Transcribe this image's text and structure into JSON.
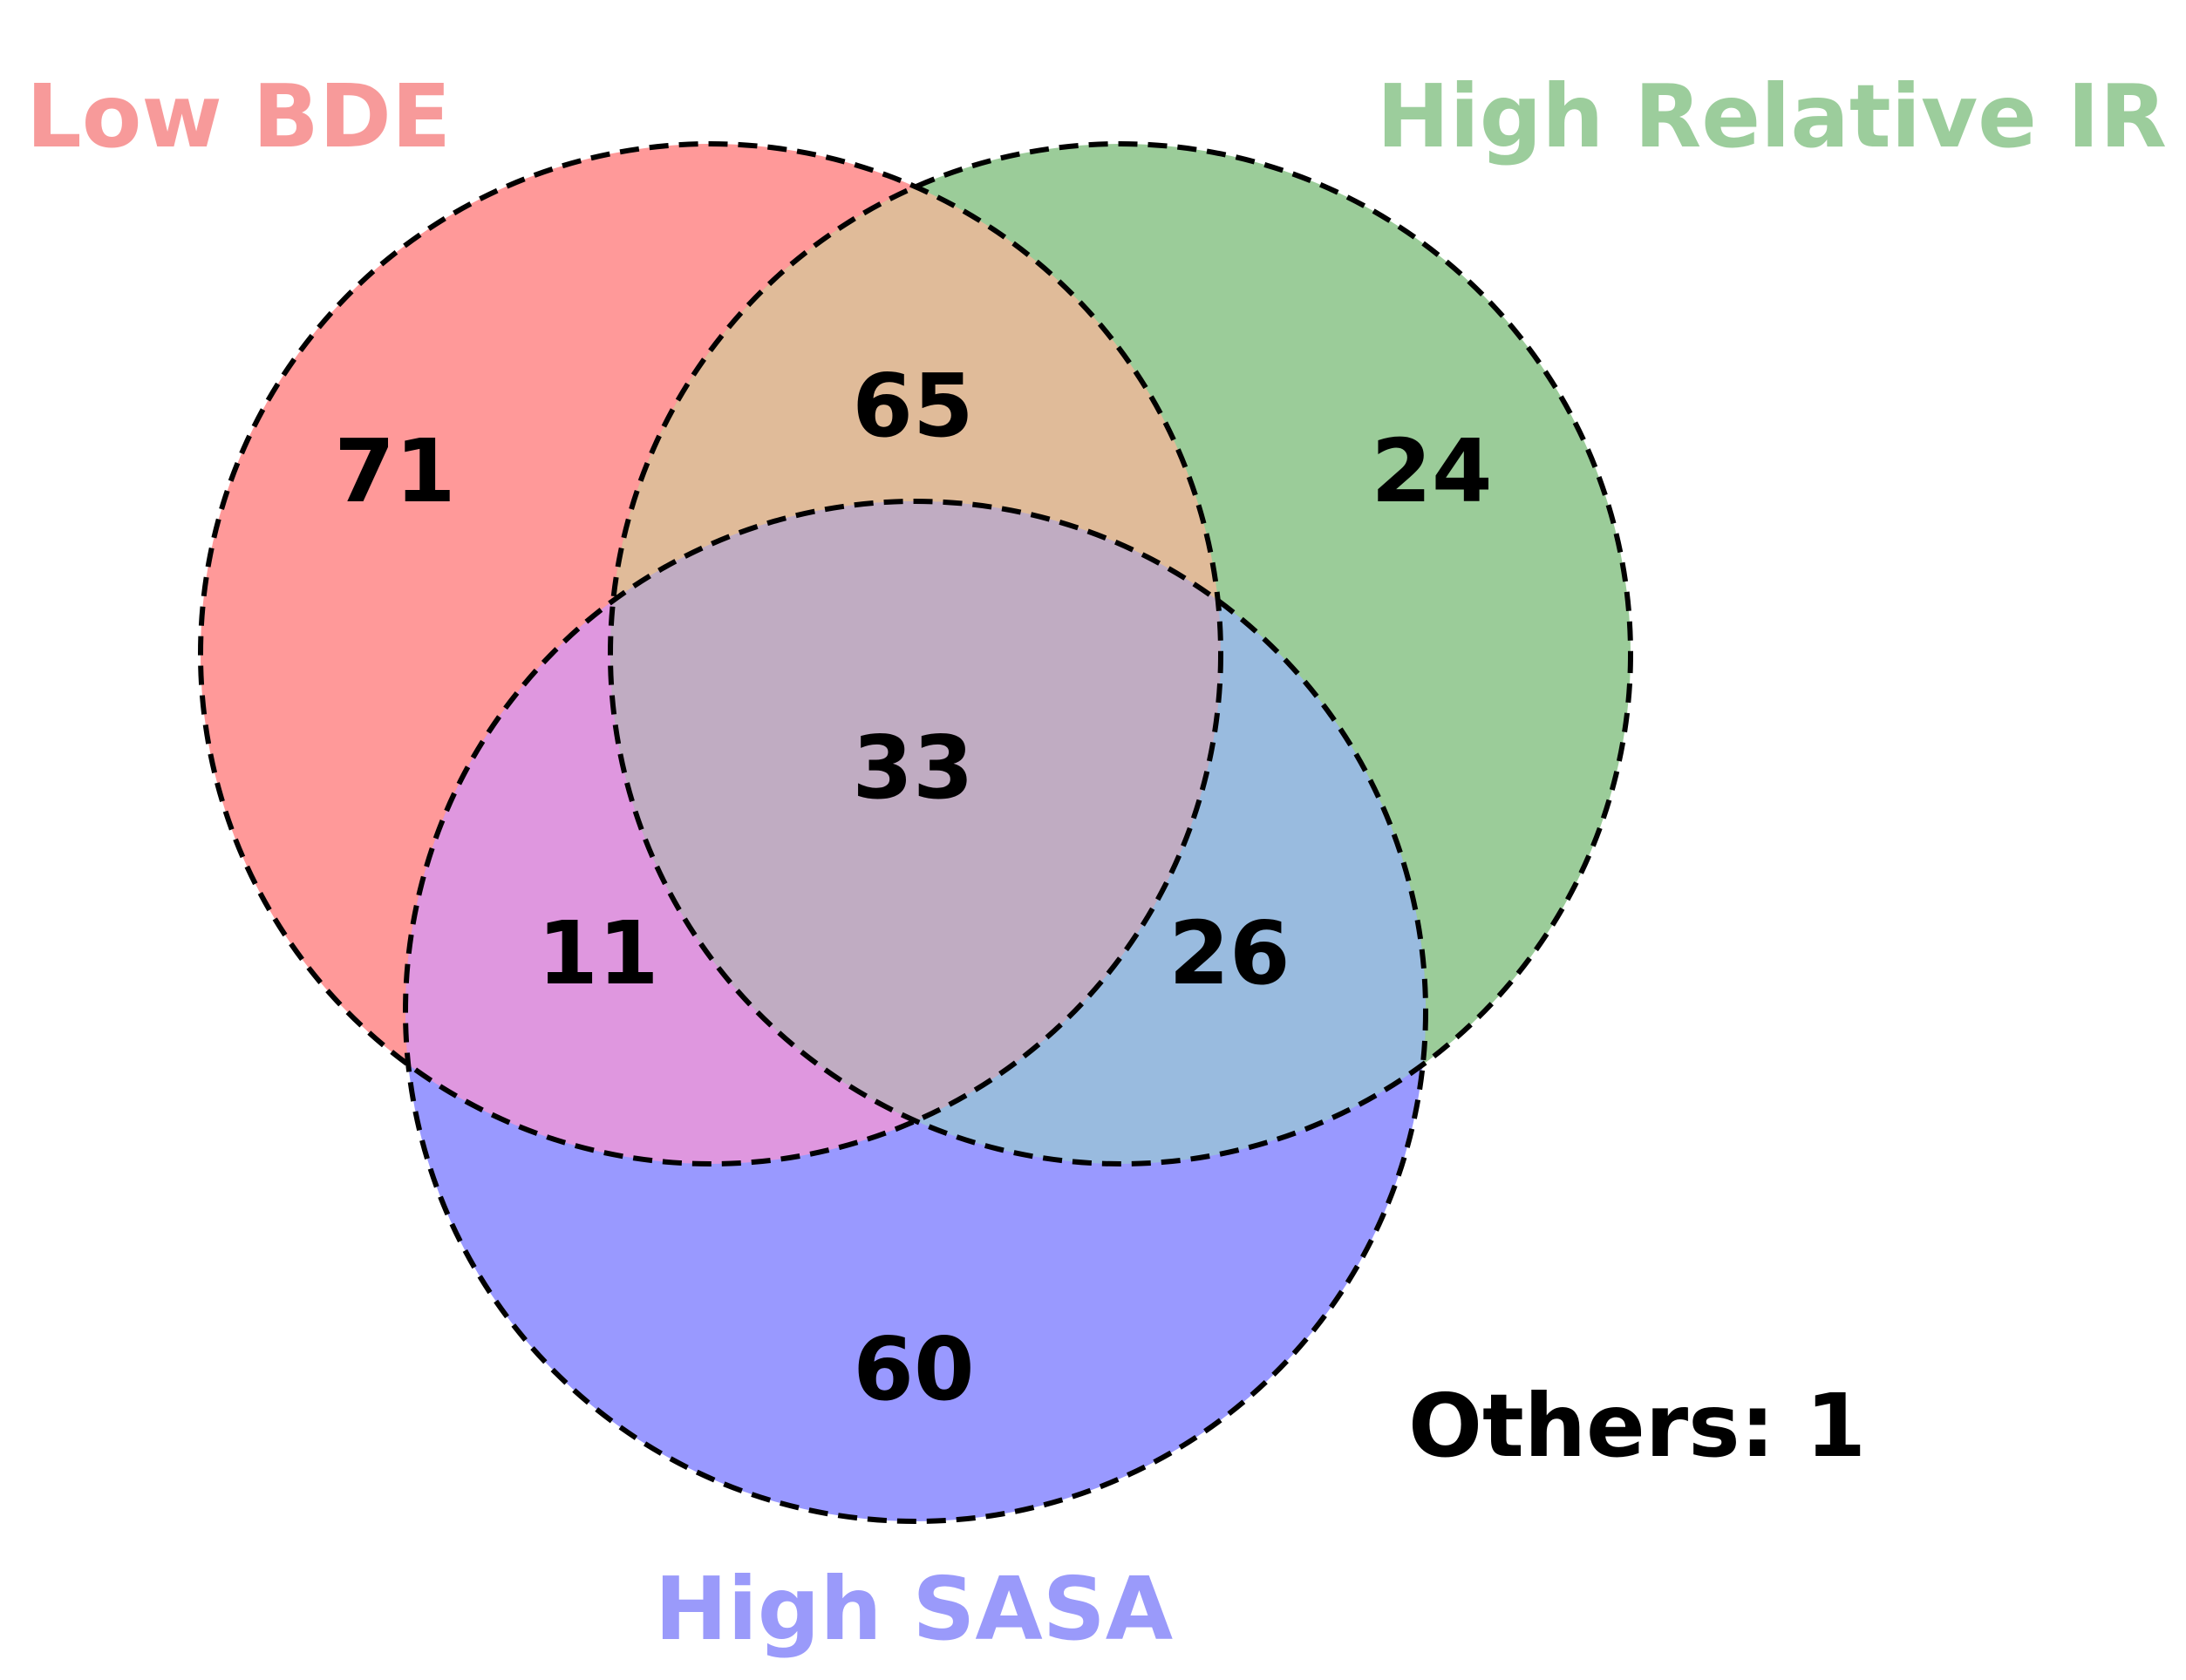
{
  "sets": [
    {
      "id": "low_bde",
      "label": "Low BDE",
      "color": "#ff3333",
      "label_color": "#f79a9a"
    },
    {
      "id": "high_relative_ir",
      "label": "High Relative IR",
      "color": "#339933",
      "label_color": "#9ccd9c"
    },
    {
      "id": "high_sasa",
      "label": "High SASA",
      "color": "#3333ff",
      "label_color": "#9a9afa"
    }
  ],
  "regions": {
    "low_bde_only": "71",
    "low_bde_and_high_relative_ir": "65",
    "high_relative_ir_only": "24",
    "all_three": "33",
    "low_bde_and_high_sasa": "11",
    "high_relative_ir_and_high_sasa": "26",
    "high_sasa_only": "60"
  },
  "others": {
    "text": "Others: 1"
  },
  "region_colors": {
    "low_bde_only": "#ff9999",
    "high_relative_ir_only": "#9bcc99",
    "high_sasa_only": "#9999ff",
    "low_bde_and_high_relative_ir": "#e0bb99",
    "low_bde_and_high_sasa": "#df97df",
    "high_relative_ir_and_high_sasa": "#99bbdf",
    "all_three": "#c0acc2"
  }
}
